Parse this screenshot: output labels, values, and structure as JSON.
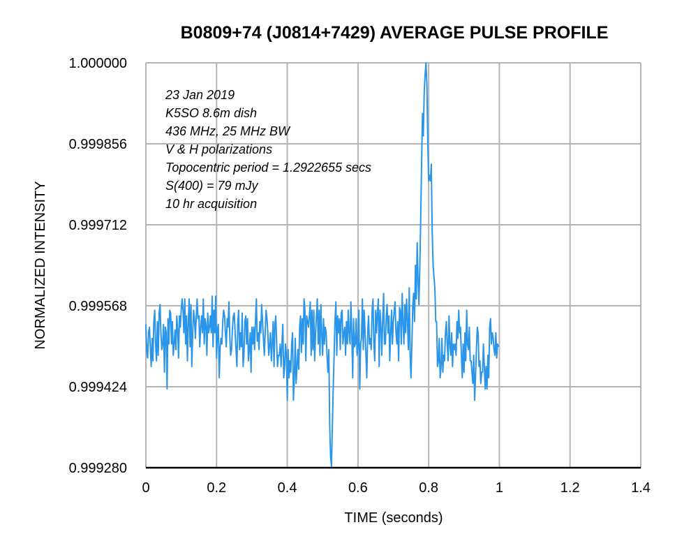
{
  "chart_data": {
    "type": "line",
    "title": "B0809+74 (J0814+7429) AVERAGE PULSE PROFILE",
    "xlabel": "TIME (seconds)",
    "ylabel": "NORMALIZED INTENSITY",
    "xlim": [
      0,
      1.4
    ],
    "ylim": [
      0.99928,
      1.0
    ],
    "x_ticks": [
      "0",
      "0.2",
      "0.4",
      "0.6",
      "0.8",
      "1",
      "1.2",
      "1.4"
    ],
    "y_ticks": [
      "0.999280",
      "0.999424",
      "0.999568",
      "0.999712",
      "0.999856",
      "1.000000"
    ],
    "grid": true,
    "line_color": "#2b95ea",
    "annotations": [
      "23 Jan 2019",
      "K5SO 8.6m dish",
      "436 MHz, 25 MHz BW",
      "V & H polarizations",
      "Topocentric period = 1.2922655 secs",
      "S(400) = 79 mJy",
      "10 hr acquisition"
    ],
    "series": [
      {
        "x_start": 0.0,
        "x_step": 0.0025,
        "values": [
          0.999535,
          0.999485,
          0.999475,
          0.99952,
          0.99953,
          0.999495,
          0.99946,
          0.99951,
          0.99947,
          0.99954,
          0.99956,
          0.9995,
          0.99947,
          0.99954,
          0.99948,
          0.999555,
          0.99957,
          0.99952,
          0.99949,
          0.9995,
          0.999535,
          0.99945,
          0.99953,
          0.99952,
          0.99942,
          0.999545,
          0.9995,
          0.99956,
          0.999555,
          0.9995,
          0.99954,
          0.99948,
          0.9995,
          0.999525,
          0.99949,
          0.99955,
          0.999525,
          0.999475,
          0.99955,
          0.99953,
          0.99956,
          0.99958,
          0.99956,
          0.99952,
          0.99958,
          0.9995,
          0.99955,
          0.99947,
          0.99954,
          0.99958,
          0.999495,
          0.99957,
          0.99946,
          0.99952,
          0.99956,
          0.999545,
          0.99951,
          0.99955,
          0.99958,
          0.999545,
          0.99955,
          0.999495,
          0.99953,
          0.99955,
          0.99952,
          0.99958,
          0.9995,
          0.999545,
          0.999535,
          0.99948,
          0.999555,
          0.99952,
          0.99953,
          0.99955,
          0.99952,
          0.999585,
          0.999495,
          0.99956,
          0.99952,
          0.999585,
          0.999475,
          0.999525,
          0.999535,
          0.99944,
          0.999495,
          0.99951,
          0.9995,
          0.99954,
          0.99956,
          0.99955,
          0.99952,
          0.999495,
          0.999545,
          0.99953,
          0.999575,
          0.99951,
          0.99948,
          0.99949,
          0.99953,
          0.99955,
          0.999555,
          0.99952,
          0.99949,
          0.99946,
          0.99954,
          0.99956,
          0.99949,
          0.99952,
          0.999495,
          0.999555,
          0.99946,
          0.99948,
          0.99954,
          0.99955,
          0.9995,
          0.999545,
          0.99947,
          0.99949,
          0.99952,
          0.99945,
          0.99953,
          0.9995,
          0.99953,
          0.99949,
          0.99954,
          0.99958,
          0.999505,
          0.99952,
          0.99949,
          0.99954,
          0.99952,
          0.99957,
          0.99954,
          0.99951,
          0.99948,
          0.99952,
          0.99956,
          0.999545,
          0.99952,
          0.99948,
          0.9995,
          0.99952,
          0.99947,
          0.9995,
          0.99954,
          0.99946,
          0.999535,
          0.99955,
          0.9995,
          0.99946,
          0.99948,
          0.99948,
          0.9995,
          0.99946,
          0.9995,
          0.999535,
          0.99944,
          0.99946,
          0.9995,
          0.99948,
          0.9994,
          0.99949,
          0.99944,
          0.99947,
          0.99945,
          0.9995,
          0.99952,
          0.9994,
          0.99944,
          0.99951,
          0.99943,
          0.99946,
          0.99949,
          0.999455,
          0.99953,
          0.99955,
          0.999485,
          0.999545,
          0.9995,
          0.99958,
          0.99956,
          0.99947,
          0.99955,
          0.99954,
          0.99953,
          0.99955,
          0.999575,
          0.99948,
          0.99956,
          0.99949,
          0.99956,
          0.99947,
          0.99952,
          0.99955,
          0.99958,
          0.9995,
          0.99956,
          0.99948,
          0.99957,
          0.99952,
          0.99948,
          0.999545,
          0.9995,
          0.99953,
          0.99952,
          0.99948,
          0.99945,
          0.99949,
          0.99936,
          0.9993,
          0.999282,
          0.99935,
          0.99942,
          0.99948,
          0.99954,
          0.999575,
          0.99948,
          0.99955,
          0.99952,
          0.999545,
          0.99949,
          0.999555,
          0.99956,
          0.9995,
          0.99952,
          0.99953,
          0.99948,
          0.99954,
          0.9995,
          0.99956,
          0.99952,
          0.9995,
          0.999575,
          0.99952,
          0.99944,
          0.999545,
          0.999495,
          0.9995,
          0.999545,
          0.99948,
          0.9995,
          0.99956,
          0.99942,
          0.9995,
          0.99951,
          0.99958,
          0.99949,
          0.99956,
          0.99952,
          0.99948,
          0.99944,
          0.99952,
          0.99955,
          0.9995,
          0.99951,
          0.99949,
          0.99956,
          0.99958,
          0.9995,
          0.99947,
          0.99956,
          0.99952,
          0.999555,
          0.99958,
          0.99946,
          0.99956,
          0.99953,
          0.99948,
          0.999545,
          0.99959,
          0.9995,
          0.9995,
          0.99955,
          0.99957,
          0.99952,
          0.99955,
          0.99947,
          0.99952,
          0.99956,
          0.9995,
          0.99954,
          0.99956,
          0.999575,
          0.99952,
          0.9995,
          0.99954,
          0.99947,
          0.999565,
          0.99956,
          0.9995,
          0.99959,
          0.99954,
          0.9995,
          0.99957,
          0.99952,
          0.99958,
          0.99954,
          0.99949,
          0.9996,
          0.99948,
          0.99944,
          0.9995,
          0.99957,
          0.99959,
          0.99954,
          0.99964,
          0.99958,
          0.99968,
          0.99961,
          0.99957,
          0.99964,
          0.99972,
          0.99982,
          0.99991,
          0.99987,
          0.99995,
          0.99998,
          1.0,
          0.99996,
          0.99986,
          0.99979,
          0.9998,
          0.99979,
          0.99982,
          0.9997,
          0.99964,
          0.99962,
          0.9996,
          0.99954,
          0.99954,
          0.99946,
          0.99947,
          0.99951,
          0.99944,
          0.99946,
          0.99951,
          0.99945,
          0.99948,
          0.99947,
          0.99952,
          0.99954,
          0.9995,
          0.99947,
          0.99955,
          0.9995,
          0.99948,
          0.99952,
          0.99946,
          0.9995,
          0.99949,
          0.9995,
          0.99948,
          0.99954,
          0.99951,
          0.99956,
          0.99952,
          0.99953,
          0.99948,
          0.99944,
          0.9995,
          0.99945,
          0.99952,
          0.99947,
          0.99956,
          0.9995,
          0.99949,
          0.99953,
          0.99947,
          0.99947,
          0.99945,
          0.99943,
          0.99948,
          0.9994,
          0.99944,
          0.99949,
          0.99953,
          0.99952,
          0.99946,
          0.99947,
          0.99943,
          0.99945,
          0.99945,
          0.9995,
          0.99946,
          0.99942,
          0.99946,
          0.99942,
          0.99948,
          0.99944,
          0.99953,
          0.999545,
          0.9995,
          0.99952,
          0.99951,
          0.99949,
          0.99948,
          0.99952,
          0.999475,
          0.9995,
          0.999495
        ]
      }
    ]
  }
}
